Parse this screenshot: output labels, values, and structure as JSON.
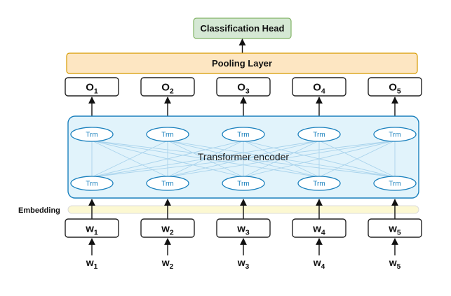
{
  "head": {
    "label": "Classification Head"
  },
  "pooling": {
    "label": "Pooling Layer"
  },
  "outputs": [
    {
      "base": "O",
      "sub": "1"
    },
    {
      "base": "O",
      "sub": "2"
    },
    {
      "base": "O",
      "sub": "3"
    },
    {
      "base": "O",
      "sub": "4"
    },
    {
      "base": "O",
      "sub": "5"
    }
  ],
  "encoder": {
    "label": "Transformer encoder",
    "top_nodes": [
      "Trm",
      "Trm",
      "Trm",
      "Trm",
      "Trm"
    ],
    "bottom_nodes": [
      "Trm",
      "Trm",
      "Trm",
      "Trm",
      "Trm"
    ]
  },
  "embedding": {
    "label": "Embedding"
  },
  "token_boxes": [
    {
      "base": "w",
      "sub": "1"
    },
    {
      "base": "w",
      "sub": "2"
    },
    {
      "base": "w",
      "sub": "3"
    },
    {
      "base": "w",
      "sub": "4"
    },
    {
      "base": "w",
      "sub": "5"
    }
  ],
  "inputs": [
    {
      "base": "w",
      "sub": "1"
    },
    {
      "base": "w",
      "sub": "2"
    },
    {
      "base": "w",
      "sub": "3"
    },
    {
      "base": "w",
      "sub": "4"
    },
    {
      "base": "w",
      "sub": "5"
    }
  ],
  "colors": {
    "head_fill": "#d5e8d4",
    "head_border": "#82b366",
    "pooling_fill": "#fde6c2",
    "pooling_border": "#d79b00",
    "encoder_fill": "#e1f3fb",
    "encoder_border": "#1a80bd",
    "node_border": "#1a80bd",
    "node_text": "#1a80bd",
    "connection": "#a9d3ec",
    "embedding_fill": "#fcf8d2",
    "embedding_border": "#dcdcdc",
    "box_border": "#222222",
    "arrow": "#111111"
  }
}
